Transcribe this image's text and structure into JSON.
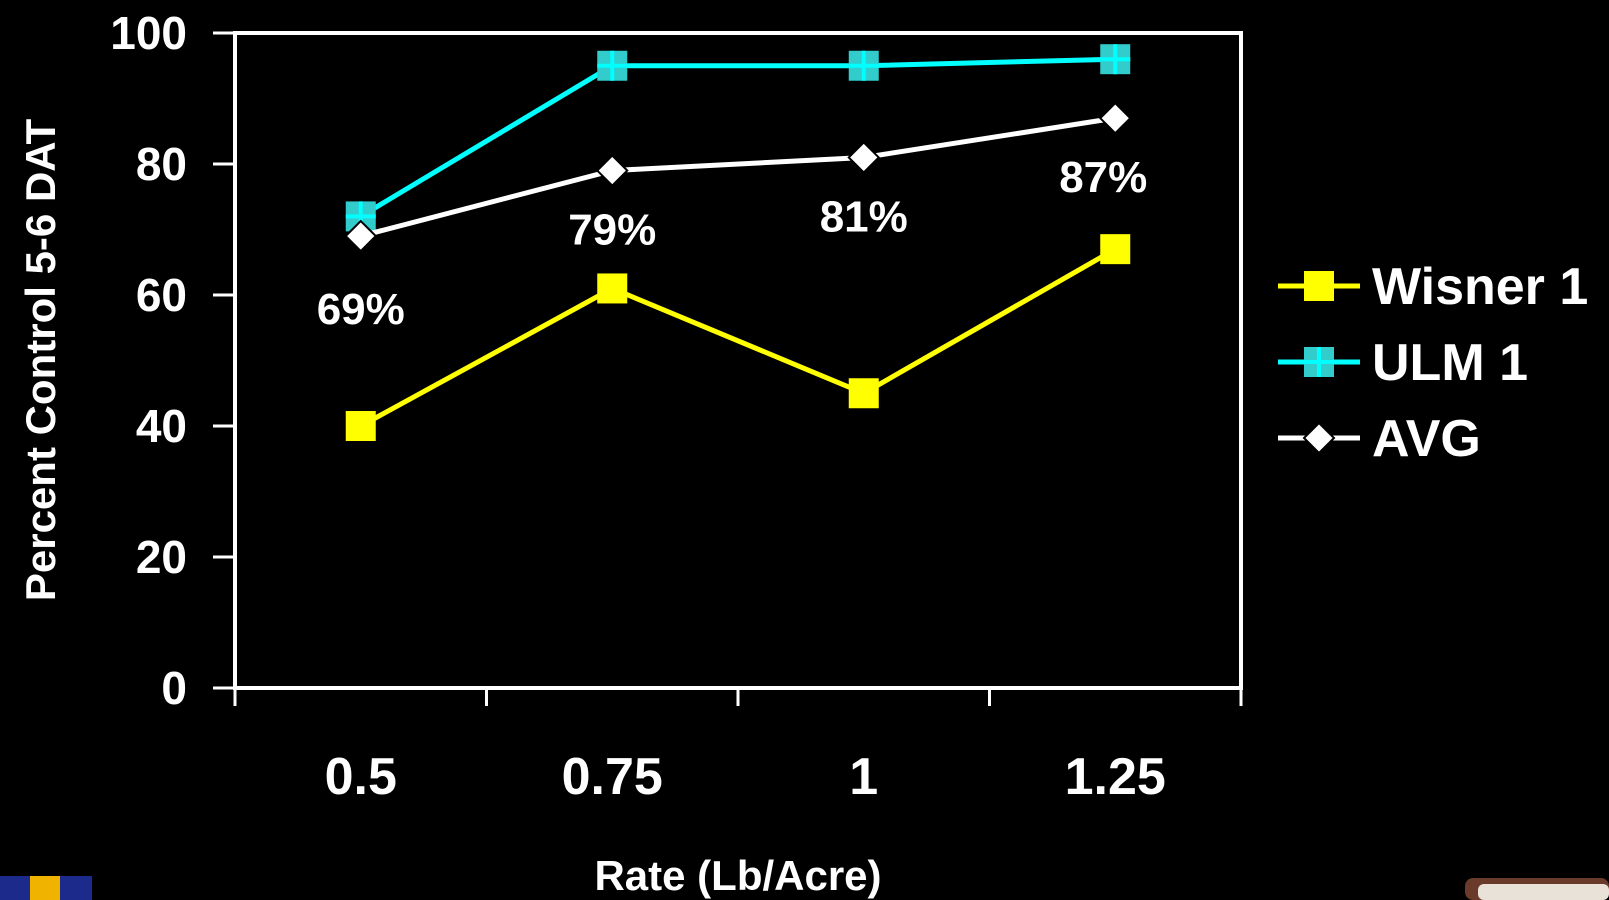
{
  "chart_data": {
    "type": "line",
    "title": "",
    "xlabel": "Rate (Lb/Acre)",
    "ylabel": "Percent Control 5-6 DAT",
    "categories": [
      "0.5",
      "0.75",
      "1",
      "1.25"
    ],
    "ylim": [
      0,
      100
    ],
    "yticks": [
      "0",
      "20",
      "40",
      "60",
      "80",
      "100"
    ],
    "grid": false,
    "legend_position": "right",
    "series": [
      {
        "name": "Wisner 1",
        "values": [
          40,
          61,
          45,
          67
        ],
        "color": "#ffff00",
        "marker": "square"
      },
      {
        "name": "ULM 1",
        "values": [
          72,
          95,
          95,
          96
        ],
        "color": "#00ffff",
        "marker": "square-cross",
        "marker_fill": "#33cccc"
      },
      {
        "name": "AVG",
        "values": [
          69,
          79,
          81,
          87
        ],
        "color": "#ffffff",
        "marker": "diamond"
      }
    ],
    "annotations": [
      "69%",
      "79%",
      "81%",
      "87%"
    ]
  },
  "colors": {
    "background": "#000000",
    "axis": "#ffffff",
    "text": "#ffffff"
  }
}
